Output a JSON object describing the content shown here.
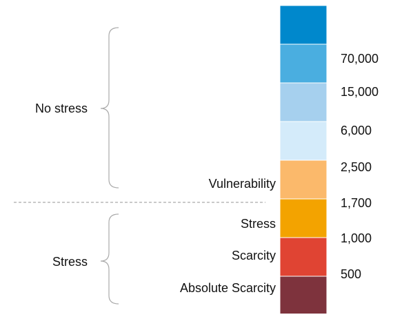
{
  "levels": [
    {
      "color": "#0088cc"
    },
    {
      "color": "#4aaee0"
    },
    {
      "color": "#a6d0ee"
    },
    {
      "color": "#d4ebfa"
    },
    {
      "color": "#fbb96b",
      "label": "Vulnerability"
    },
    {
      "color": "#f3a300",
      "label": "Stress"
    },
    {
      "color": "#e04433",
      "label": "Scarcity"
    },
    {
      "color": "#7e333d",
      "label": "Absolute Scarcity"
    }
  ],
  "thresholds": [
    "70,000",
    "15,000",
    "6,000",
    "2,500",
    "1,700",
    "1,000",
    "500"
  ],
  "groups": [
    {
      "label": "No stress"
    },
    {
      "label": "Stress"
    }
  ]
}
